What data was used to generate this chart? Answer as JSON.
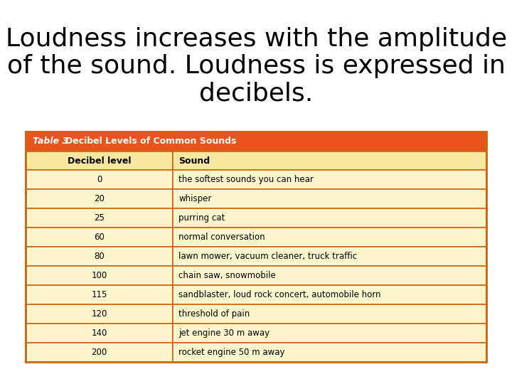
{
  "title_line1": "Loudness increases with the amplitude",
  "title_line2": "of the sound. Loudness is expressed in",
  "title_line3": "decibels.",
  "title_fontsize": 26,
  "background_color": "#ffffff",
  "table_header_italic": "Table 3 ",
  "table_header_rest": "Decibel Levels of Common Sounds",
  "table_header_bg": "#e8541a",
  "table_header_text_color": "#ffffff",
  "table_col_header_bg": "#f7e8a0",
  "table_col_header_text_color": "#000000",
  "table_row_bg": "#fdf5cc",
  "table_border_color": "#cc6611",
  "col_headers": [
    "Decibel level",
    "Sound"
  ],
  "rows": [
    [
      "0",
      "the softest sounds you can hear"
    ],
    [
      "20",
      "whisper"
    ],
    [
      "25",
      "purring cat"
    ],
    [
      "60",
      "normal conversation"
    ],
    [
      "80",
      "lawn mower, vacuum cleaner, truck traffic"
    ],
    [
      "100",
      "chain saw, snowmobile"
    ],
    [
      "115",
      "sandblaster, loud rock concert, automobile horn"
    ],
    [
      "120",
      "threshold of pain"
    ],
    [
      "140",
      "jet engine 30 m away"
    ],
    [
      "200",
      "rocket engine 50 m away"
    ]
  ],
  "fig_width": 7.2,
  "fig_height": 5.4,
  "dpi": 100
}
